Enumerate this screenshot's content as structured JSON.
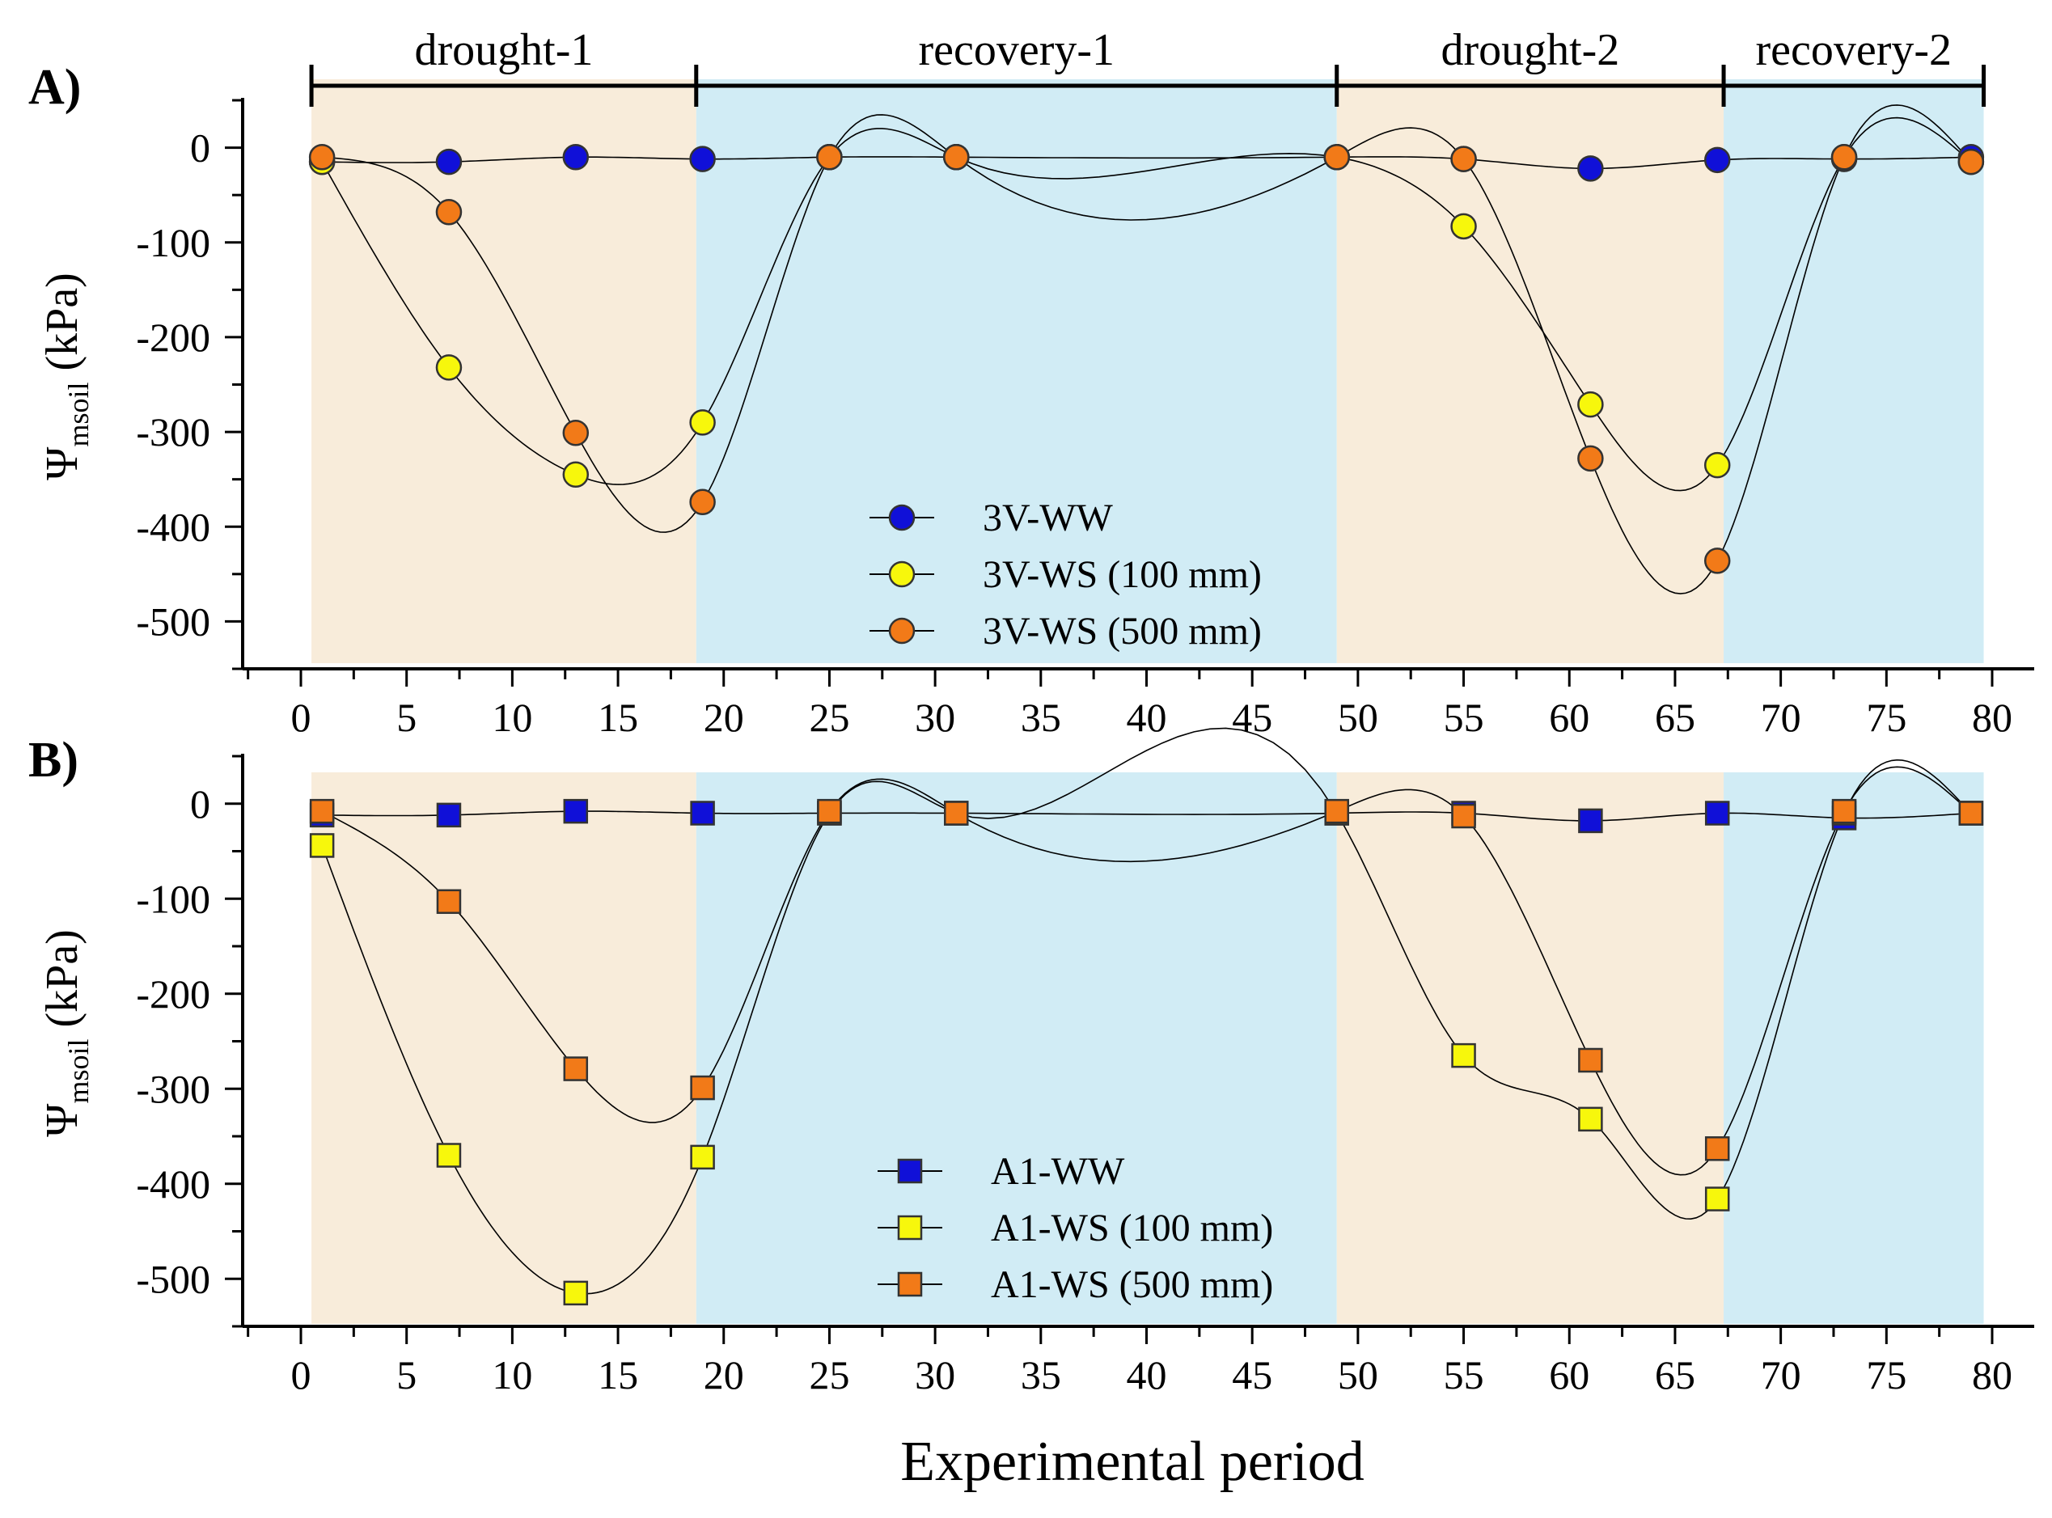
{
  "xlabel": "Experimental period",
  "colors": {
    "drought_band": "#f8ecda",
    "recovery_band": "#d1ecf5",
    "ww": "#1010d8",
    "ws100": "#f7f70c",
    "ws500": "#f27a18"
  },
  "phases": [
    {
      "label": "drought-1",
      "start": 0.5,
      "end": 18.7,
      "kind": "drought"
    },
    {
      "label": "recovery-1",
      "start": 18.7,
      "end": 49.0,
      "kind": "recovery"
    },
    {
      "label": "drought-2",
      "start": 49.0,
      "end": 67.3,
      "kind": "drought"
    },
    {
      "label": "recovery-2",
      "start": 67.3,
      "end": 79.6,
      "kind": "recovery"
    }
  ],
  "chart_data": [
    {
      "type": "line",
      "panel_label": "A)",
      "marker": "circle",
      "ylabel": {
        "main": "Ψ",
        "sub": "msoil",
        "unit": " (kPa)"
      },
      "xlim": [
        -2.5,
        82.5
      ],
      "ylim": [
        -550,
        50
      ],
      "xticks": [
        0,
        5,
        10,
        15,
        20,
        25,
        30,
        35,
        40,
        45,
        50,
        55,
        60,
        65,
        70,
        75,
        80
      ],
      "yticks": [
        0,
        -100,
        -200,
        -300,
        -400,
        -500
      ],
      "series": [
        {
          "name": "3V-WW",
          "color": "#1010d8",
          "x": [
            1,
            7,
            13,
            19,
            25,
            31,
            49,
            55,
            61,
            67,
            73,
            79
          ],
          "y": [
            -15,
            -15,
            -10,
            -12,
            -10,
            -10,
            -10,
            -12,
            -22,
            -13,
            -12,
            -10
          ]
        },
        {
          "name": "3V-WS (100 mm)",
          "color": "#f7f70c",
          "x": [
            1,
            7,
            13,
            19,
            25,
            31,
            49,
            55,
            61,
            67,
            73,
            79
          ],
          "y": [
            -15,
            -232,
            -345,
            -290,
            -10,
            -10,
            -10,
            -83,
            -271,
            -335,
            -10,
            -15
          ]
        },
        {
          "name": "3V-WS (500 mm)",
          "color": "#f27a18",
          "x": [
            1,
            7,
            13,
            19,
            25,
            31,
            49,
            55,
            61,
            67,
            73,
            79
          ],
          "y": [
            -10,
            -68,
            -301,
            -374,
            -10,
            -10,
            -10,
            -12,
            -328,
            -436,
            -10,
            -15
          ]
        }
      ]
    },
    {
      "type": "line",
      "panel_label": "B)",
      "marker": "square",
      "ylabel": {
        "main": "Ψ",
        "sub": "msoil",
        "unit": " (kPa)"
      },
      "xlim": [
        -2.5,
        82.5
      ],
      "ylim": [
        -550,
        50
      ],
      "xticks": [
        0,
        5,
        10,
        15,
        20,
        25,
        30,
        35,
        40,
        45,
        50,
        55,
        60,
        65,
        70,
        75,
        80
      ],
      "yticks": [
        0,
        -100,
        -200,
        -300,
        -400,
        -500
      ],
      "series": [
        {
          "name": "A1-WW",
          "color": "#1010d8",
          "x": [
            1,
            7,
            13,
            19,
            25,
            31,
            49,
            55,
            61,
            67,
            73,
            79
          ],
          "y": [
            -12,
            -12,
            -8,
            -10,
            -10,
            -10,
            -10,
            -10,
            -18,
            -10,
            -15,
            -10
          ]
        },
        {
          "name": "A1-WS (100 mm)",
          "color": "#f7f70c",
          "x": [
            1,
            7,
            13,
            19,
            25,
            31,
            49,
            55,
            61,
            67,
            73,
            79
          ],
          "y": [
            -44,
            -370,
            -515,
            -372,
            -10,
            -10,
            -10,
            -265,
            -332,
            -416,
            -10,
            -10
          ]
        },
        {
          "name": "A1-WS (500 mm)",
          "color": "#f27a18",
          "x": [
            1,
            7,
            13,
            19,
            25,
            31,
            49,
            55,
            61,
            67,
            73,
            79
          ],
          "y": [
            -8,
            -103,
            -279,
            -299,
            -8,
            -10,
            -8,
            -13,
            -270,
            -363,
            -8,
            -10
          ]
        }
      ]
    }
  ]
}
